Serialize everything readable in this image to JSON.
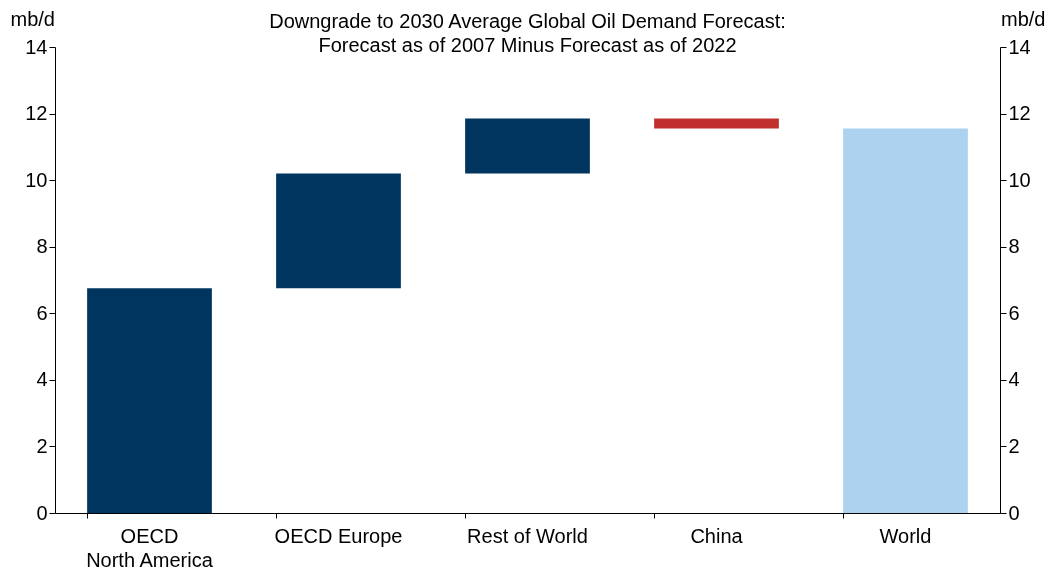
{
  "chart_data": {
    "type": "bar",
    "title": "Downgrade to 2030 Average Global Oil Demand Forecast:",
    "subtitle": "Forecast as of 2007 Minus Forecast as of 2022",
    "ylabel": "mb/d",
    "y2label": "mb/d",
    "categories": [
      "OECD\nNorth America",
      "OECD Europe",
      "Rest of World",
      "China",
      "World"
    ],
    "values": [
      6.75,
      3.45,
      1.65,
      -0.3,
      11.55
    ],
    "base": [
      0,
      6.75,
      10.2,
      11.85,
      0
    ],
    "colors": [
      "#00355f",
      "#00355f",
      "#00355f",
      "#c0302f",
      "#acd2f0"
    ],
    "ylim": [
      0,
      14
    ],
    "yticks": [
      0,
      2,
      4,
      6,
      8,
      10,
      12,
      14
    ],
    "y2lim": [
      0,
      14
    ],
    "y2ticks": [
      0,
      2,
      4,
      6,
      8,
      10,
      12,
      14
    ]
  }
}
